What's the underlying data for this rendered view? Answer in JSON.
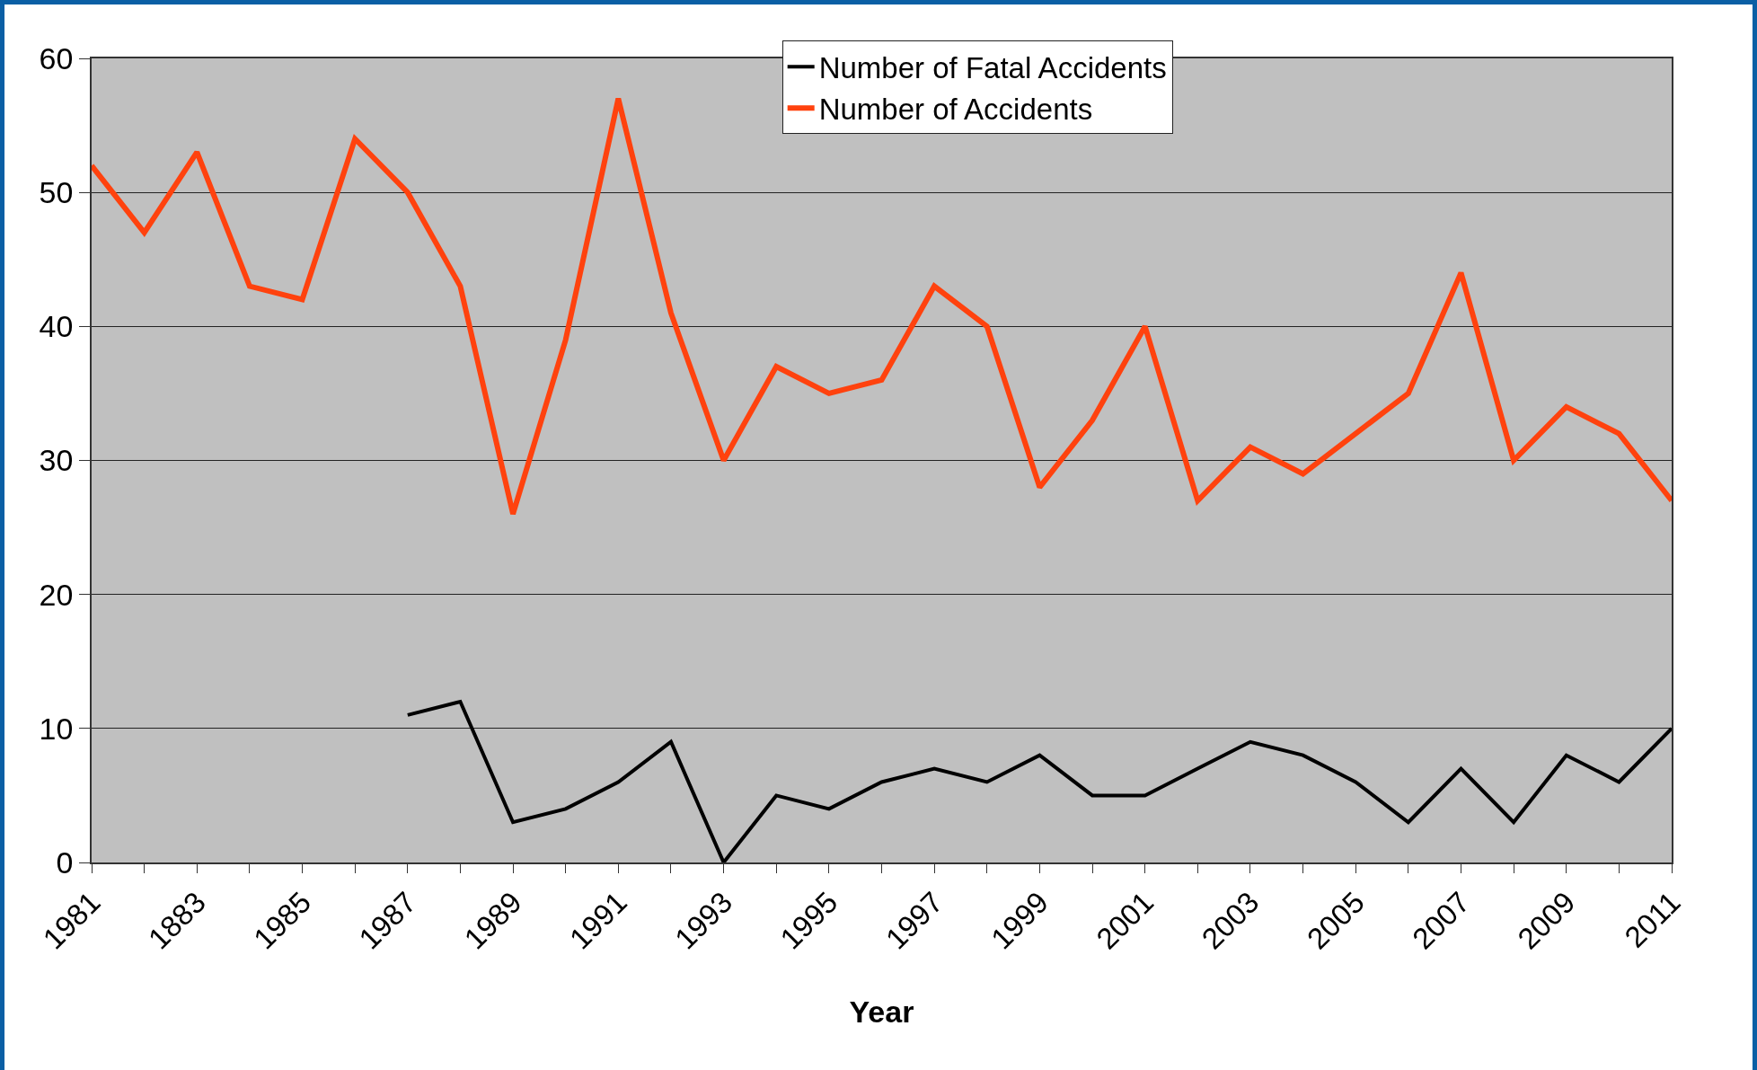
{
  "chart_data": {
    "type": "line",
    "xlabel": "Year",
    "categories": [
      "1981",
      null,
      "1883",
      null,
      "1985",
      null,
      "1987",
      null,
      "1989",
      null,
      "1991",
      null,
      "1993",
      null,
      "1995",
      null,
      "1997",
      null,
      "1999",
      null,
      "2001",
      null,
      "2003",
      null,
      "2005",
      null,
      "2007",
      null,
      "2009",
      null,
      "2011"
    ],
    "series": [
      {
        "name": "Number of Fatal Accidents",
        "color": "#000000",
        "values": [
          null,
          null,
          null,
          null,
          null,
          null,
          11,
          12,
          3,
          4,
          6,
          9,
          0,
          5,
          4,
          6,
          7,
          6,
          8,
          5,
          5,
          7,
          9,
          8,
          6,
          3,
          7,
          3,
          8,
          6,
          10
        ]
      },
      {
        "name": "Number of Accidents",
        "color": "#ff420e",
        "values": [
          52,
          47,
          53,
          43,
          42,
          54,
          50,
          43,
          26,
          39,
          57,
          41,
          30,
          37,
          35,
          36,
          43,
          40,
          28,
          33,
          40,
          27,
          31,
          29,
          32,
          35,
          44,
          30,
          34,
          32,
          27
        ]
      }
    ],
    "ylim": [
      0,
      60
    ],
    "yticks": [
      0,
      10,
      20,
      30,
      40,
      50,
      60
    ],
    "grid": "y",
    "legend": "top",
    "marker": "none",
    "line_style": "solid"
  }
}
